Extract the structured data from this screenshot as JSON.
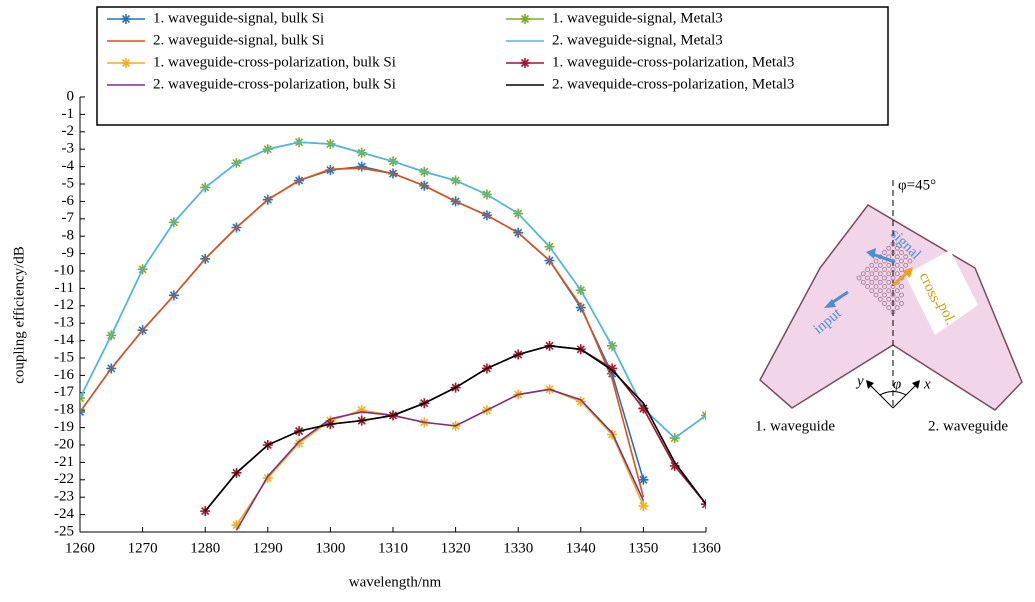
{
  "chart_data": {
    "type": "line",
    "xlabel": "wavelength/nm",
    "ylabel": "coupling efficiency/dB",
    "x": [
      1260,
      1265,
      1270,
      1275,
      1280,
      1285,
      1290,
      1295,
      1300,
      1305,
      1310,
      1315,
      1320,
      1325,
      1330,
      1335,
      1340,
      1345,
      1350,
      1355,
      1360
    ],
    "xlim": [
      1260,
      1360
    ],
    "xticks": [
      1260,
      1270,
      1280,
      1290,
      1300,
      1310,
      1320,
      1330,
      1340,
      1350,
      1360
    ],
    "ylim": [
      -25,
      0
    ],
    "yticks": [
      0,
      -1,
      -2,
      -3,
      -4,
      -5,
      -6,
      -7,
      -8,
      -9,
      -10,
      -11,
      -12,
      -13,
      -14,
      -15,
      -16,
      -17,
      -18,
      -19,
      -20,
      -21,
      -22,
      -23,
      -24,
      -25
    ],
    "grid": false,
    "legend": "top",
    "series": [
      {
        "name": "1. waveguide-signal, bulk Si",
        "color": "#2a72b5",
        "marker": true,
        "values": [
          -18.1,
          -15.6,
          -13.4,
          -11.4,
          -9.3,
          -7.5,
          -5.9,
          -4.8,
          -4.2,
          -4.0,
          -4.4,
          -5.1,
          -6.0,
          -6.8,
          -7.8,
          -9.4,
          -12.1,
          -15.9,
          -22.0,
          null,
          null
        ]
      },
      {
        "name": "2. waveguide-signal, bulk Si",
        "color": "#d95319",
        "marker": false,
        "values": [
          -18.1,
          -15.6,
          -13.4,
          -11.4,
          -9.3,
          -7.5,
          -5.9,
          -4.8,
          -4.15,
          -4.1,
          -4.4,
          -5.1,
          -6.0,
          -6.8,
          -7.8,
          -9.4,
          -12.0,
          -16.2,
          -23.0,
          null,
          null
        ]
      },
      {
        "name": "1. waveguide-signal, Metal3",
        "color": "#77ac30",
        "marker": true,
        "values": [
          -17.3,
          -13.7,
          -9.9,
          -7.2,
          -5.2,
          -3.8,
          -3.0,
          -2.6,
          -2.7,
          -3.2,
          -3.7,
          -4.3,
          -4.8,
          -5.6,
          -6.7,
          -8.6,
          -11.1,
          -14.3,
          -17.9,
          -19.6,
          -18.3
        ]
      },
      {
        "name": "2. waveguide-signal, Metal3",
        "color": "#4db8e8",
        "marker": false,
        "values": [
          -17.3,
          -13.7,
          -9.9,
          -7.2,
          -5.2,
          -3.8,
          -3.0,
          -2.6,
          -2.7,
          -3.2,
          -3.7,
          -4.3,
          -4.8,
          -5.6,
          -6.7,
          -8.6,
          -11.1,
          -14.3,
          -17.9,
          -19.6,
          -18.3
        ]
      },
      {
        "name": "1. waveguide-cross-polarization, bulk Si",
        "color": "#edb120",
        "marker": true,
        "values": [
          null,
          null,
          null,
          null,
          null,
          -24.6,
          -21.9,
          -19.9,
          -18.6,
          -18.0,
          -18.3,
          -18.7,
          -18.9,
          -18.0,
          -17.1,
          -16.8,
          -17.5,
          -19.4,
          -23.5,
          null,
          null
        ]
      },
      {
        "name": "2. waveguide-cross-polarization, bulk Si",
        "color": "#7e2f8e",
        "marker": false,
        "values": [
          null,
          null,
          null,
          null,
          null,
          -24.9,
          -21.8,
          -19.8,
          -18.5,
          -18.1,
          -18.3,
          -18.7,
          -18.9,
          -18.0,
          -17.1,
          -16.8,
          -17.4,
          -19.3,
          -23.2,
          null,
          null
        ]
      },
      {
        "name": "1. waveguide-cross-polarization, Metal3",
        "color": "#a2142f",
        "marker": true,
        "values": [
          null,
          null,
          null,
          null,
          -23.8,
          -21.6,
          -20.0,
          -19.2,
          -18.8,
          -18.6,
          -18.3,
          -17.6,
          -16.7,
          -15.6,
          -14.8,
          -14.3,
          -14.5,
          -15.6,
          -17.9,
          -21.2,
          -23.4
        ]
      },
      {
        "name": "2. wavequide-cross-polarization, Metal3",
        "color": "#000000",
        "marker": false,
        "values": [
          null,
          null,
          null,
          null,
          -23.8,
          -21.6,
          -20.0,
          -19.2,
          -18.8,
          -18.6,
          -18.3,
          -17.6,
          -16.7,
          -15.6,
          -14.8,
          -14.3,
          -14.5,
          -15.7,
          -17.6,
          -21.0,
          -23.4
        ]
      }
    ]
  },
  "diagram": {
    "angle_label": "φ=45°",
    "signal": "signal",
    "cross": "cross-",
    "cross2": "pol.",
    "input": "input",
    "axis_y": "y",
    "axis_phi": "φ",
    "axis_x": "x",
    "left": "1. waveguide",
    "right": "2. waveguide"
  }
}
